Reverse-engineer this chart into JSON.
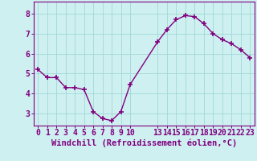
{
  "x": [
    0,
    1,
    2,
    3,
    4,
    5,
    6,
    7,
    8,
    9,
    10,
    13,
    14,
    15,
    16,
    17,
    18,
    19,
    20,
    21,
    22,
    23
  ],
  "y": [
    5.2,
    4.8,
    4.8,
    4.3,
    4.3,
    4.2,
    3.1,
    2.75,
    2.65,
    3.1,
    4.45,
    6.6,
    7.2,
    7.7,
    7.9,
    7.85,
    7.5,
    7.0,
    6.7,
    6.5,
    6.2,
    5.8
  ],
  "line_color": "#800080",
  "marker": "+",
  "marker_size": 4,
  "marker_lw": 1.2,
  "bg_color": "#cff0f0",
  "grid_color": "#a0d8d8",
  "xlabel": "Windchill (Refroidissement éolien,°C)",
  "xlabel_color": "#800080",
  "xlabel_fontsize": 7.5,
  "tick_color": "#800080",
  "tick_fontsize": 7,
  "yticks": [
    3,
    4,
    5,
    6,
    7,
    8
  ],
  "xticks": [
    0,
    1,
    2,
    3,
    4,
    5,
    6,
    7,
    8,
    9,
    10,
    13,
    14,
    15,
    16,
    17,
    18,
    19,
    20,
    21,
    22,
    23
  ],
  "ylim": [
    2.4,
    8.6
  ],
  "xlim": [
    -0.5,
    23.5
  ],
  "spine_color": "#800080",
  "linewidth": 1.0
}
